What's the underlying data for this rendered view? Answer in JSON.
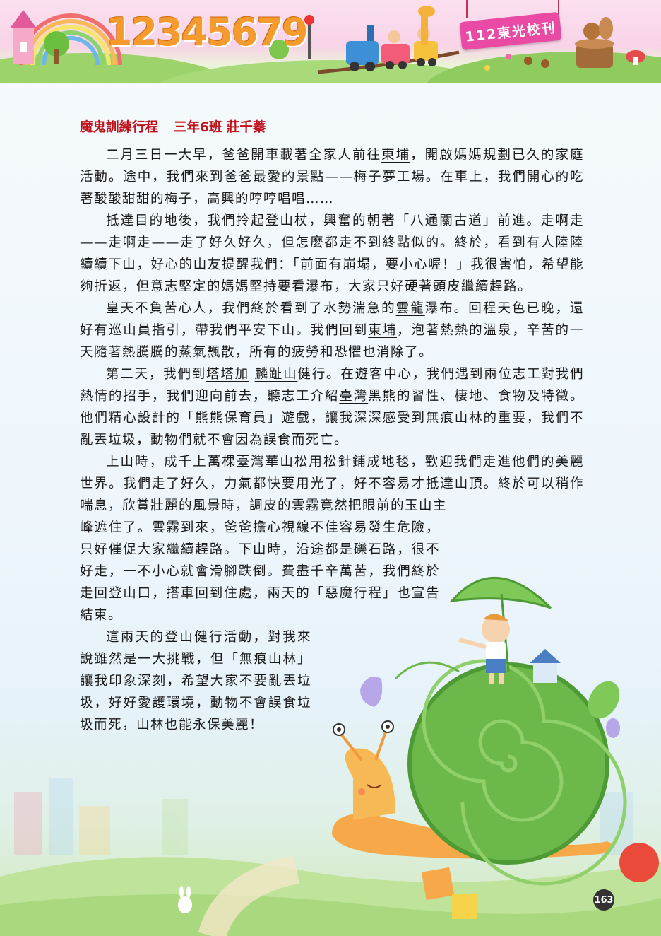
{
  "header": {
    "digits": "12345679",
    "school_label": "112東光校刊"
  },
  "article": {
    "title": "魔鬼訓練行程",
    "author": "三年6班 莊千蓁",
    "p1": [
      {
        "t": "二月三日一大早，爸爸開車載著全家人前往"
      },
      {
        "t": "東埔",
        "u": true
      },
      {
        "t": "，開啟媽媽規劃已久的家庭活動。途中，我們來到爸爸最愛的景點——梅子夢工場。在車上，我們開心的吃著酸酸甜甜的梅子，高興的哼哼唱唱……"
      }
    ],
    "p2": [
      {
        "t": "抵達目的地後，我們拎起登山杖，興奮的朝著「"
      },
      {
        "t": "八通關古道",
        "u": true
      },
      {
        "t": "」前進。走啊走——走啊走——走了好久好久，但怎麼都走不到終點似的。終於，看到有人陸陸續續下山，好心的山友提醒我們：「前面有崩塌，要小心喔！」我很害怕，希望能夠折返，但意志堅定的媽媽堅持要看瀑布，大家只好硬著頭皮繼續趕路。"
      }
    ],
    "p3": [
      {
        "t": "皇天不負苦心人，我們終於看到了水勢湍急的"
      },
      {
        "t": "雲龍",
        "u": true
      },
      {
        "t": "瀑布。回程天色已晚，還好有巡山員指引，帶我們平安下山。我們回到"
      },
      {
        "t": "東埔",
        "u": true
      },
      {
        "t": "，泡著熱熱的溫泉，辛苦的一天隨著熱騰騰的蒸氣飄散，所有的疲勞和恐懼也消除了。"
      }
    ],
    "p4": [
      {
        "t": "第二天，我們到"
      },
      {
        "t": "塔塔加",
        "u": true
      },
      {
        "t": " "
      },
      {
        "t": "麟趾山",
        "u": true
      },
      {
        "t": "健行。在遊客中心，我們遇到兩位志工對我們熱情的招手，我們迎向前去，聽志工介紹"
      },
      {
        "t": "臺灣",
        "u": true
      },
      {
        "t": "黑熊的習性、棲地、食物及特徵。他們精心設計的「熊熊保育員」遊戲，讓我深深感受到無痕山林的重要，我們不亂丟垃圾，動物們就不會因為誤食而死亡。"
      }
    ],
    "p5": [
      {
        "t": "上山時，成千上萬棵"
      },
      {
        "t": "臺灣",
        "u": true
      },
      {
        "t": "華山松用松針鋪成地毯，歡迎我們走進他們的美麗世界。我們走了好久，力氣都快要用光了，好不容易才抵達山頂。終於可以稍作喘息，欣賞壯麗的風景時，調皮的雲霧竟然把眼前的"
      },
      {
        "t": "玉山",
        "u": true
      },
      {
        "t": "主"
      }
    ],
    "p5b": [
      {
        "t": "峰遮住了。雲霧到來，爸爸擔心視線不佳容易發生危險，只好催促大家繼續趕路。下山時，沿途都是礫石路，很不好走，一不小心就會滑腳跌倒。費盡千辛萬苦，我們終於走回登山口，搭車回到住處，兩天的「惡魔行程」也宣告結束。"
      }
    ],
    "p6": [
      {
        "t": "這兩天的登山健行活動，對我來說雖然是一大挑戰，但「無痕山林」讓我印象深刻，希望大家不要亂丟垃圾，好好愛護環境，動物不會誤食垃圾而死，山林也能永保美麗！"
      }
    ]
  },
  "page_number": "163"
}
